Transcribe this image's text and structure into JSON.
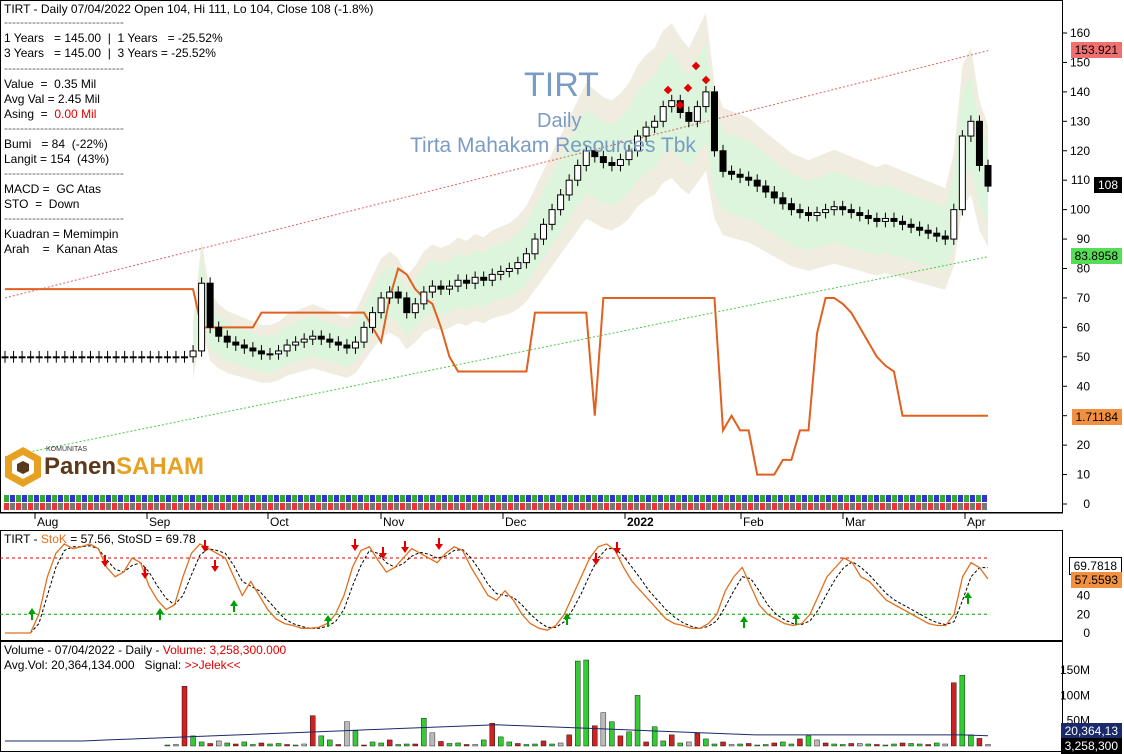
{
  "header": {
    "line1": "TIRT - Daily 07/04/2022 Open 104, Hi 111, Lo 104, Close 108 (-1.8%)",
    "sep": "------------------------------",
    "perf1": "1 Years   = 145.00  |  1 Years   = -25.52%",
    "perf3": "3 Years   = 145.00  |  3 Years = -25.52%",
    "value": "Value  =  0.35 Mil",
    "avgval": "Avg Val = 2.45 Mil",
    "asing_label": "Asing  =  ",
    "asing_val": "0.00 Mil",
    "bumi": "Bumi   = 84  (-22%)",
    "langit": "Langit = 154  (43%)",
    "macd": "MACD =  GC Atas",
    "sto": "STO  =  Down",
    "kuadran": "Kuadran = Memimpin",
    "arah": "Arah    =  Kanan Atas"
  },
  "watermark": {
    "ticker": "TIRT",
    "period": "Daily",
    "name": "Tirta Mahakam Resources Tbk",
    "logo_small": "KOMUNITAS",
    "logo_a": "Panen",
    "logo_b": "SAHAM"
  },
  "price_labels": {
    "upper": "153.921",
    "last": "108",
    "lower": "83.8958",
    "indicator": "1.71184"
  },
  "stoch_header": {
    "prefix": "TIRT - ",
    "k_label": "StoK",
    "rest": " = 57.56, StoSD = 69.78",
    "sd_val": "69.7818",
    "k_val": "57.5593"
  },
  "volume_header": {
    "line1_a": "Volume - 07/04/2022 - Daily - ",
    "line1_b": "Volume: 3,258,300.000",
    "line2_a": "Avg.Vol: 20,364,134.000   Signal: ",
    "line2_b": ">>Jelek<<",
    "avg_val": "20,364,13",
    "vol_val": "3,258,300"
  },
  "chart_data": [
    {
      "type": "candlestick",
      "title": "TIRT - Daily",
      "x_ticks": [
        "Aug",
        "Sep",
        "Oct",
        "Nov",
        "Dec",
        "2022",
        "Feb",
        "Mar",
        "Apr"
      ],
      "y_ticks": [
        0,
        10,
        20,
        30,
        40,
        50,
        60,
        70,
        80,
        90,
        100,
        110,
        120,
        130,
        140,
        150,
        160
      ],
      "ylim": [
        0,
        160
      ],
      "series": [
        {
          "values": [
            50,
            50,
            50,
            50,
            50,
            50,
            50,
            50,
            50,
            50,
            50,
            50,
            50,
            50,
            50,
            50,
            50,
            50,
            50,
            50,
            50,
            50,
            52,
            75,
            60,
            57,
            55,
            54,
            53,
            52,
            51,
            51,
            52,
            54,
            55,
            56,
            57,
            56,
            55,
            54,
            53,
            55,
            60,
            65,
            70,
            72,
            70,
            65,
            68,
            72,
            74,
            73,
            74,
            76,
            75,
            77,
            76,
            78,
            79,
            80,
            82,
            85,
            90,
            95,
            100,
            105,
            110,
            115,
            120,
            118,
            116,
            115,
            117,
            120,
            125,
            128,
            130,
            135,
            137,
            133,
            130,
            135,
            140,
            120,
            113,
            112,
            111,
            110,
            108,
            106,
            104,
            102,
            100,
            99,
            98,
            99,
            100,
            101,
            100,
            99,
            98,
            97,
            96,
            97,
            96,
            95,
            94,
            93,
            92,
            91,
            90,
            100,
            125,
            130,
            115,
            108
          ]
        },
        {
          "name": "Langit",
          "values": [
            70,
            72,
            74,
            76,
            78,
            80,
            82,
            84,
            86,
            88,
            90,
            92,
            94,
            96,
            98,
            100,
            102,
            104,
            106,
            108,
            110,
            112,
            114,
            116,
            118,
            120,
            122,
            124,
            126,
            128,
            130,
            132,
            134,
            136,
            138,
            140,
            142,
            144,
            146,
            148,
            150,
            152,
            154
          ]
        },
        {
          "name": "Bumi",
          "values": [
            16,
            18,
            20,
            22,
            24,
            26,
            28,
            30,
            32,
            34,
            36,
            38,
            40,
            42,
            44,
            46,
            48,
            50,
            52,
            54,
            56,
            58,
            60,
            62,
            64,
            66,
            68,
            70,
            72,
            74,
            76,
            78,
            80,
            82,
            84
          ]
        }
      ]
    },
    {
      "type": "line",
      "title": "StoK / StoSD",
      "y_ticks": [
        0,
        20,
        40,
        60
      ],
      "ylim": [
        0,
        100
      ],
      "series": [
        {
          "name": "StoK",
          "values": [
            0,
            0,
            0,
            0,
            20,
            60,
            85,
            95,
            90,
            92,
            95,
            90,
            70,
            60,
            65,
            80,
            75,
            50,
            35,
            25,
            30,
            60,
            85,
            95,
            90,
            85,
            80,
            60,
            40,
            55,
            40,
            25,
            15,
            10,
            8,
            5,
            5,
            6,
            10,
            20,
            40,
            70,
            88,
            92,
            78,
            65,
            70,
            80,
            90,
            85,
            80,
            75,
            85,
            92,
            88,
            70,
            55,
            40,
            35,
            45,
            35,
            20,
            10,
            5,
            3,
            8,
            20,
            40,
            60,
            80,
            92,
            95,
            88,
            70,
            55,
            45,
            35,
            25,
            15,
            10,
            8,
            5,
            5,
            10,
            20,
            45,
            60,
            70,
            50,
            30,
            20,
            15,
            10,
            8,
            10,
            20,
            40,
            60,
            70,
            80,
            75,
            60,
            55,
            45,
            35,
            30,
            25,
            20,
            15,
            10,
            8,
            8,
            20,
            60,
            75,
            69.78,
            57.56
          ]
        },
        {
          "name": "StoSD",
          "values": [
            0,
            0,
            0,
            0,
            10,
            40,
            70,
            88,
            92,
            92,
            93,
            90,
            78,
            68,
            65,
            72,
            75,
            65,
            50,
            37,
            30,
            40,
            62,
            83,
            90,
            88,
            85,
            72,
            55,
            50,
            45,
            35,
            25,
            15,
            10,
            7,
            5,
            5,
            7,
            12,
            25,
            50,
            72,
            88,
            85,
            75,
            70,
            74,
            82,
            86,
            84,
            80,
            82,
            88,
            89,
            80,
            67,
            52,
            42,
            40,
            38,
            30,
            20,
            12,
            6,
            6,
            12,
            25,
            42,
            62,
            80,
            90,
            90,
            82,
            70,
            58,
            45,
            35,
            25,
            17,
            11,
            7,
            5,
            7,
            13,
            28,
            45,
            60,
            58,
            45,
            30,
            20,
            14,
            10,
            9,
            13,
            25,
            42,
            58,
            70,
            76,
            70,
            62,
            52,
            42,
            35,
            30,
            25,
            20,
            15,
            11,
            9,
            12,
            35,
            60,
            69.78,
            69.78
          ]
        }
      ]
    },
    {
      "type": "bar",
      "title": "Volume",
      "y_ticks": [
        "50M",
        "100M",
        "150M"
      ],
      "ylim": [
        0,
        170
      ],
      "series": [
        {
          "name": "Volume",
          "values": [
            0,
            0,
            0,
            0,
            0,
            0,
            0,
            0,
            0,
            0,
            0,
            0,
            0,
            0,
            0,
            0,
            0,
            0,
            0,
            2,
            3,
            118,
            20,
            8,
            5,
            10,
            6,
            4,
            8,
            3,
            6,
            4,
            5,
            3,
            2,
            4,
            60,
            20,
            12,
            3,
            48,
            30,
            2,
            8,
            6,
            12,
            3,
            4,
            4,
            55,
            26,
            9,
            5,
            6,
            3,
            3,
            12,
            45,
            18,
            8,
            5,
            3,
            4,
            10,
            4,
            6,
            22,
            168,
            170,
            40,
            66,
            48,
            20,
            28,
            100,
            8,
            38,
            10,
            22,
            6,
            8,
            25,
            14,
            4,
            8,
            3,
            4,
            5,
            2,
            3,
            6,
            8,
            4,
            14,
            20,
            12,
            6,
            4,
            3,
            5,
            5,
            4,
            3,
            2,
            4,
            6,
            5,
            4,
            3,
            6,
            4,
            125,
            140,
            22,
            15,
            3
          ]
        },
        {
          "name": "Avg.Vol",
          "values": [
            10,
            10,
            10,
            10,
            12,
            14,
            16,
            18,
            20,
            22,
            24,
            26,
            28,
            30,
            32,
            34,
            36,
            38,
            40,
            42,
            40,
            38,
            36,
            34,
            32,
            30,
            28,
            26,
            24,
            22,
            22,
            22,
            22,
            22,
            22,
            22,
            22,
            22,
            20.36
          ]
        }
      ]
    }
  ],
  "colors": {
    "up": "#ffffff",
    "down": "#000000",
    "band_outer": "#f0ede0",
    "band_inner": "#dcf5dc",
    "upper_line": "#e06060",
    "lower_line": "#44cc44",
    "indicator_line": "#e06020",
    "indicator_up": "#1a6a1a"
  }
}
